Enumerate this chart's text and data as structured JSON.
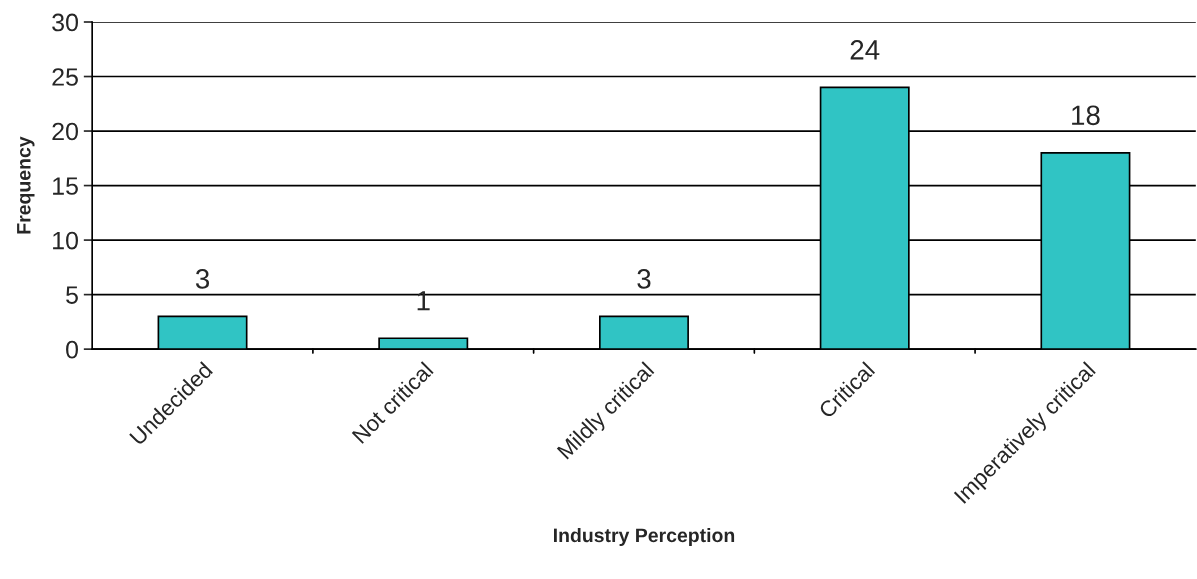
{
  "chart_data": {
    "type": "bar",
    "xlabel": "Industry Perception",
    "ylabel": "Frequency",
    "categories": [
      "Undecided",
      "Not critical",
      "Mildly critical",
      "Critical",
      "Imperatively critical"
    ],
    "values": [
      3,
      1,
      3,
      24,
      18
    ],
    "color": "#30c4c4",
    "ylim": [
      0,
      30
    ],
    "yticks": [
      0,
      5,
      10,
      15,
      20,
      25,
      30
    ],
    "grid": "y",
    "data_labels": true
  }
}
